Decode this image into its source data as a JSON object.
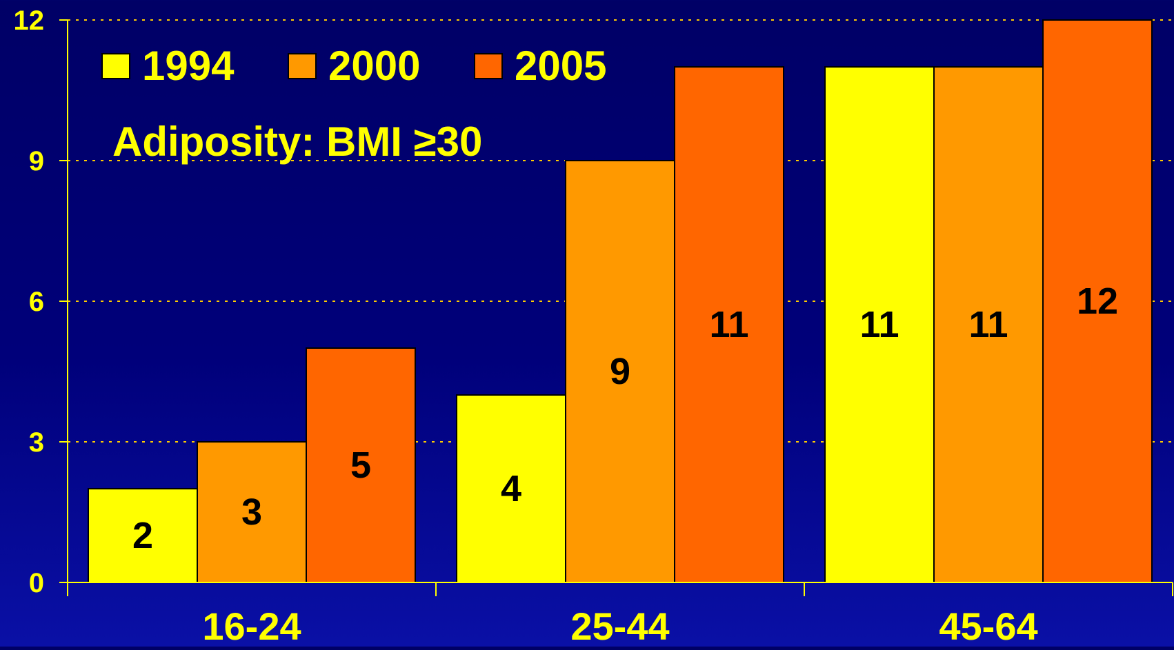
{
  "chart_data": {
    "type": "bar",
    "title": "Adiposity: BMI ≥30",
    "xlabel": "",
    "ylabel": "",
    "categories": [
      "16-24",
      "25-44",
      "45-64"
    ],
    "series": [
      {
        "name": "1994",
        "values": [
          2,
          4,
          11
        ],
        "color": "#FFFF00"
      },
      {
        "name": "2000",
        "values": [
          3,
          9,
          11
        ],
        "color": "#FF9900"
      },
      {
        "name": "2005",
        "values": [
          5,
          11,
          12
        ],
        "color": "#FF6600"
      }
    ],
    "value_labels": [
      [
        "2",
        "4",
        "11"
      ],
      [
        "3",
        "9",
        "11"
      ],
      [
        "5",
        "11",
        "12"
      ]
    ],
    "ylim": [
      0,
      12
    ],
    "yticks": [
      0,
      3,
      6,
      9,
      12
    ],
    "ytick_labels": [
      "0",
      "3",
      "6",
      "9",
      "12"
    ],
    "grid": true,
    "legend_position": "top-left",
    "colors": {
      "axis": "#FFFF00",
      "grid": "#FFCC00",
      "text": "#FFFF00",
      "value_label": "#000000",
      "bar_outline": "#000000"
    }
  }
}
